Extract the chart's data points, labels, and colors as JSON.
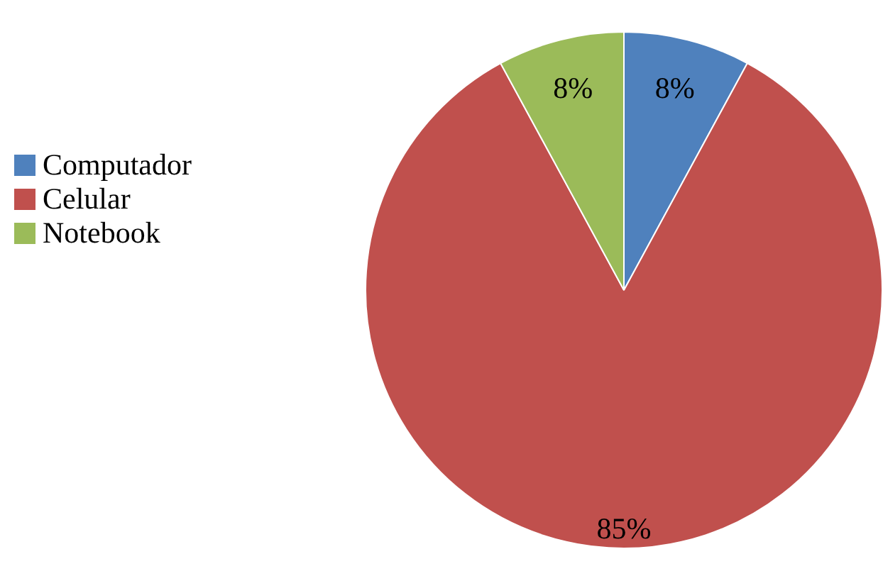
{
  "chart_data": {
    "type": "pie",
    "categories": [
      "Computador",
      "Celular",
      "Notebook"
    ],
    "values": [
      8,
      85,
      8
    ],
    "colors": [
      "#4f81bd",
      "#c0504d",
      "#9bbb59"
    ],
    "value_labels": [
      "8%",
      "85%",
      "8%"
    ],
    "legend": "left"
  }
}
